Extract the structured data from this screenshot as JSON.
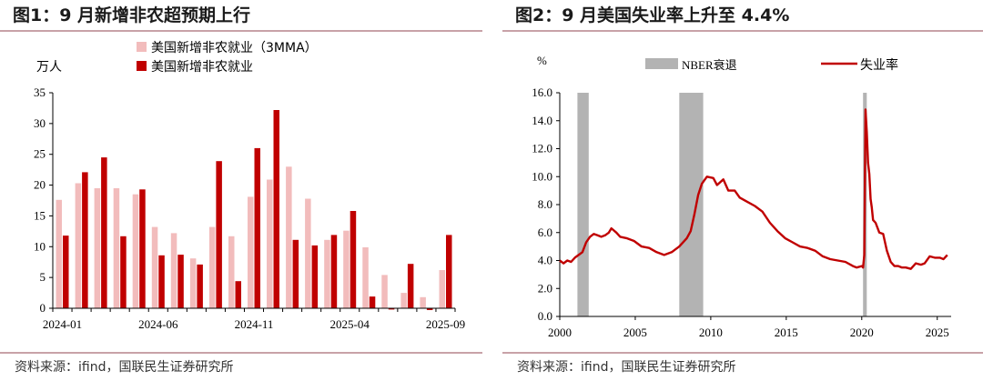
{
  "source_text": "资料来源：ifind，国联民生证券研究所",
  "chart_data": [
    {
      "type": "bar",
      "title": "图1：9 月新增非农超预期上行",
      "ylabel": "万人",
      "ylim": [
        0,
        35
      ],
      "yticks": [
        "0",
        "5",
        "10",
        "15",
        "20",
        "25",
        "30",
        "35"
      ],
      "xtick_labels": [
        "2024-01",
        "2024-06",
        "2024-11",
        "2025-04",
        "2025-09"
      ],
      "xtick_index": [
        0,
        5,
        10,
        15,
        20
      ],
      "categories": [
        "2024-01",
        "2024-02",
        "2024-03",
        "2024-04",
        "2024-05",
        "2024-06",
        "2024-07",
        "2024-08",
        "2024-09",
        "2024-10",
        "2024-11",
        "2024-12",
        "2025-01",
        "2025-02",
        "2025-03",
        "2025-04",
        "2025-05",
        "2025-06",
        "2025-07",
        "2025-08",
        "2025-09"
      ],
      "legend_position": "top-center",
      "series": [
        {
          "name": "美国新增非农就业（3MMA）",
          "color": "#f2bcbc",
          "values": [
            17.6,
            20.3,
            19.5,
            19.5,
            18.5,
            13.2,
            12.2,
            8.1,
            13.2,
            11.7,
            18.1,
            20.9,
            23.0,
            17.8,
            11.1,
            12.6,
            9.9,
            5.4,
            2.5,
            1.8,
            6.2
          ]
        },
        {
          "name": "美国新增非农就业",
          "color": "#c00000",
          "values": [
            11.8,
            22.1,
            24.5,
            11.7,
            19.3,
            8.6,
            8.7,
            7.1,
            23.9,
            4.4,
            26.0,
            32.2,
            11.1,
            10.2,
            11.9,
            15.8,
            1.9,
            -0.2,
            7.2,
            -0.3,
            11.9
          ]
        }
      ]
    },
    {
      "type": "line",
      "title": "图2：9 月美国失业率上升至 4.4%",
      "ylabel": "%",
      "ylim": [
        0,
        16
      ],
      "yticks": [
        "0.0",
        "2.0",
        "4.0",
        "6.0",
        "8.0",
        "10.0",
        "12.0",
        "14.0",
        "16.0"
      ],
      "xlim": [
        2000,
        2025.92
      ],
      "xticks": [
        "2000",
        "2005",
        "2010",
        "2015",
        "2020",
        "2025"
      ],
      "legend_position": "top",
      "recessions": {
        "name": "NBER衰退",
        "color": "#b3b3b3",
        "periods": [
          [
            "2001-03",
            "2001-11"
          ],
          [
            "2007-12",
            "2009-06"
          ],
          [
            "2020-02",
            "2020-04"
          ]
        ]
      },
      "series": [
        {
          "name": "失业率",
          "color": "#c00000",
          "points": [
            [
              "2000-01",
              4.0
            ],
            [
              "2000-04",
              3.8
            ],
            [
              "2000-07",
              4.0
            ],
            [
              "2000-10",
              3.9
            ],
            [
              "2001-01",
              4.2
            ],
            [
              "2001-04",
              4.4
            ],
            [
              "2001-07",
              4.6
            ],
            [
              "2001-10",
              5.3
            ],
            [
              "2002-01",
              5.7
            ],
            [
              "2002-04",
              5.9
            ],
            [
              "2002-07",
              5.8
            ],
            [
              "2002-10",
              5.7
            ],
            [
              "2003-01",
              5.8
            ],
            [
              "2003-04",
              6.0
            ],
            [
              "2003-06",
              6.3
            ],
            [
              "2003-10",
              6.0
            ],
            [
              "2004-01",
              5.7
            ],
            [
              "2004-06",
              5.6
            ],
            [
              "2004-12",
              5.4
            ],
            [
              "2005-06",
              5.0
            ],
            [
              "2005-12",
              4.9
            ],
            [
              "2006-06",
              4.6
            ],
            [
              "2006-12",
              4.4
            ],
            [
              "2007-06",
              4.6
            ],
            [
              "2007-12",
              5.0
            ],
            [
              "2008-06",
              5.6
            ],
            [
              "2008-09",
              6.1
            ],
            [
              "2008-12",
              7.3
            ],
            [
              "2009-03",
              8.7
            ],
            [
              "2009-06",
              9.5
            ],
            [
              "2009-10",
              10.0
            ],
            [
              "2010-03",
              9.9
            ],
            [
              "2010-06",
              9.4
            ],
            [
              "2010-11",
              9.8
            ],
            [
              "2011-03",
              9.0
            ],
            [
              "2011-08",
              9.0
            ],
            [
              "2011-12",
              8.5
            ],
            [
              "2012-06",
              8.2
            ],
            [
              "2012-12",
              7.9
            ],
            [
              "2013-06",
              7.5
            ],
            [
              "2013-12",
              6.7
            ],
            [
              "2014-06",
              6.1
            ],
            [
              "2014-12",
              5.6
            ],
            [
              "2015-06",
              5.3
            ],
            [
              "2015-12",
              5.0
            ],
            [
              "2016-06",
              4.9
            ],
            [
              "2016-12",
              4.7
            ],
            [
              "2017-06",
              4.3
            ],
            [
              "2017-12",
              4.1
            ],
            [
              "2018-06",
              4.0
            ],
            [
              "2018-12",
              3.9
            ],
            [
              "2019-06",
              3.6
            ],
            [
              "2019-09",
              3.5
            ],
            [
              "2020-01",
              3.6
            ],
            [
              "2020-02",
              3.5
            ],
            [
              "2020-03",
              4.4
            ],
            [
              "2020-04",
              14.8
            ],
            [
              "2020-05",
              13.2
            ],
            [
              "2020-06",
              11.0
            ],
            [
              "2020-07",
              10.2
            ],
            [
              "2020-08",
              8.4
            ],
            [
              "2020-09",
              7.8
            ],
            [
              "2020-10",
              6.9
            ],
            [
              "2020-12",
              6.7
            ],
            [
              "2021-03",
              6.0
            ],
            [
              "2021-06",
              5.9
            ],
            [
              "2021-09",
              4.7
            ],
            [
              "2021-12",
              3.9
            ],
            [
              "2022-03",
              3.6
            ],
            [
              "2022-06",
              3.6
            ],
            [
              "2022-09",
              3.5
            ],
            [
              "2022-12",
              3.5
            ],
            [
              "2023-04",
              3.4
            ],
            [
              "2023-08",
              3.8
            ],
            [
              "2023-12",
              3.7
            ],
            [
              "2024-03",
              3.8
            ],
            [
              "2024-07",
              4.3
            ],
            [
              "2024-11",
              4.2
            ],
            [
              "2025-03",
              4.2
            ],
            [
              "2025-06",
              4.1
            ],
            [
              "2025-08",
              4.3
            ],
            [
              "2025-09",
              4.4
            ]
          ]
        }
      ]
    }
  ]
}
